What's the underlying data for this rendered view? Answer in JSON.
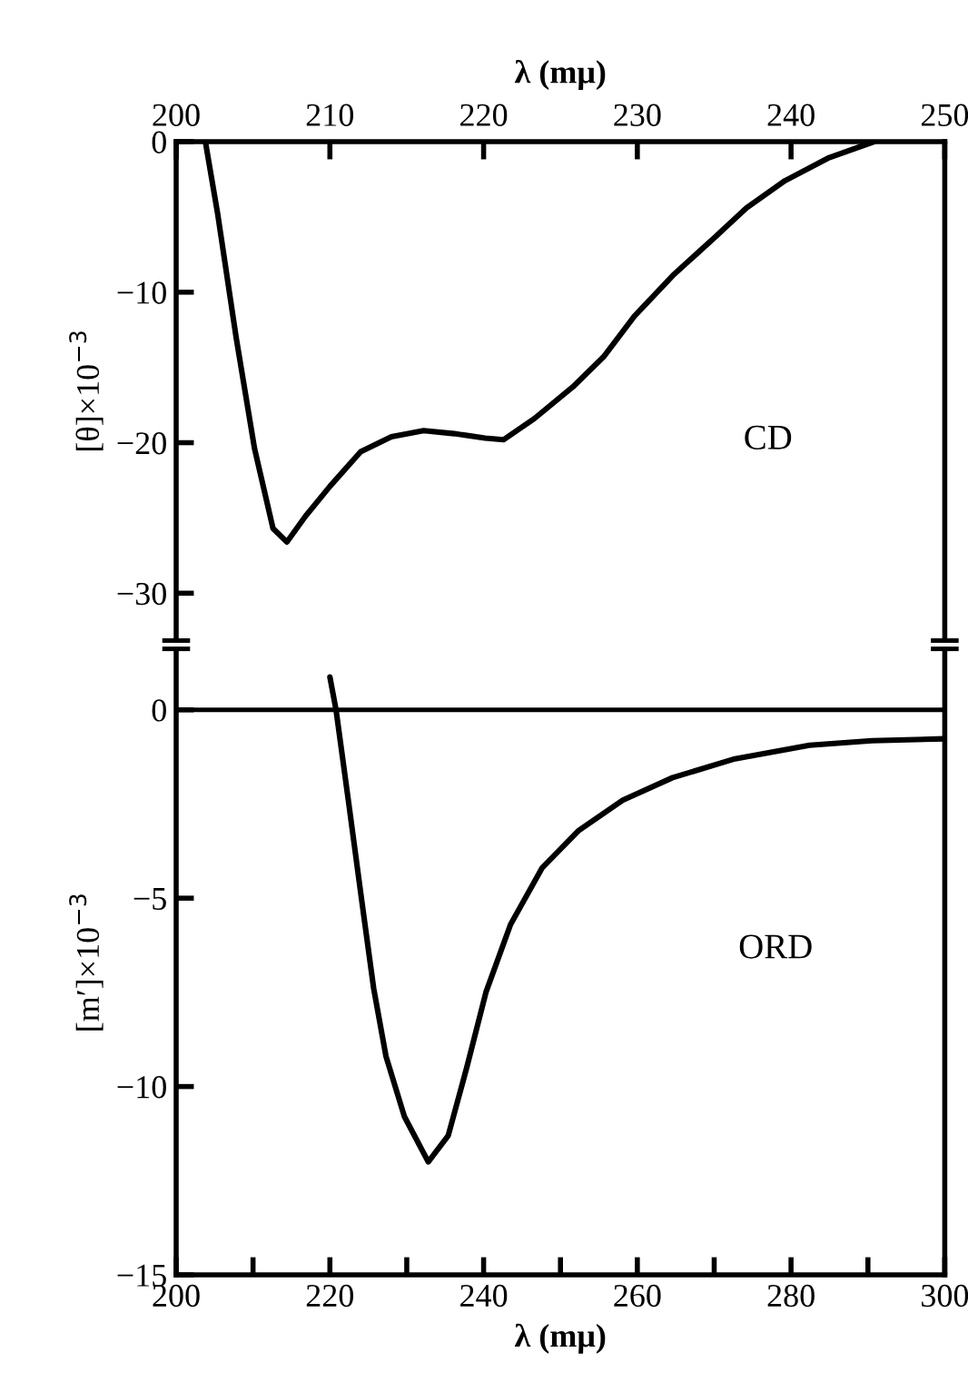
{
  "chart_data": [
    {
      "type": "line",
      "xlabel": "λ (mμ)",
      "ylabel": "[θ]×10$^{−3}$",
      "xlim": [
        200,
        250
      ],
      "xticks": [
        200,
        210,
        220,
        230,
        240,
        250
      ],
      "ylim": [
        -33.1,
        0
      ],
      "yticks": [
        0,
        {
          "value": -10,
          "label": "−10"
        },
        {
          "value": -20,
          "label": "−20"
        },
        {
          "value": -30,
          "label": "−30"
        }
      ],
      "grid": false,
      "legend": false,
      "marker": "none",
      "line_style": "solid",
      "series": [
        {
          "color": "#000000",
          "x": [
            201.9,
            202.7,
            203.9,
            205.1,
            206.3,
            207.2,
            208.4,
            210,
            212,
            214,
            216.1,
            218.1,
            220.1,
            221.3,
            223.3,
            225.8,
            227.8,
            229.8,
            232.3,
            235.1,
            237.1,
            239.6,
            242.4,
            245.4
          ],
          "values": [
            0,
            -4.8,
            -13,
            -20.4,
            -25.7,
            -26.6,
            -24.9,
            -22.9,
            -20.6,
            -19.6,
            -19.2,
            -19.4,
            -19.7,
            -19.8,
            -18.4,
            -16.3,
            -14.3,
            -11.6,
            -8.9,
            -6.3,
            -4.4,
            -2.6,
            -1.1,
            0
          ]
        }
      ],
      "annotations": [
        "CD"
      ]
    },
    {
      "type": "line",
      "xlabel": "λ (mμ)",
      "ylabel": "[m′]×10$^{−3}$",
      "xlim": [
        200,
        300
      ],
      "xticks": [
        200,
        {
          "value": 210,
          "label": null
        },
        220,
        {
          "value": 230,
          "label": null
        },
        240,
        {
          "value": 250,
          "label": null
        },
        260,
        {
          "value": 270,
          "label": null
        },
        280,
        {
          "value": 290,
          "label": null
        },
        300
      ],
      "ylim": [
        -15,
        1.6
      ],
      "yticks": [
        0,
        {
          "value": -5,
          "label": "−5"
        },
        {
          "value": -10,
          "label": "−10"
        },
        {
          "value": -15,
          "label": "−15"
        }
      ],
      "grid": false,
      "legend": false,
      "marker": "none",
      "line_style": "solid",
      "ref_lines": [
        {
          "axis": "y",
          "value": 0,
          "color": "#000000"
        }
      ],
      "series": [
        {
          "color": "#000000",
          "x": [
            220,
            220.8,
            222.4,
            224.1,
            225.7,
            227.3,
            229.7,
            232.8,
            235.4,
            237.8,
            240.3,
            243.5,
            247.6,
            252.4,
            258.1,
            264.6,
            272.7,
            282.4,
            290.5,
            300
          ],
          "values": [
            0.87,
            0,
            -2.4,
            -5.0,
            -7.4,
            -9.2,
            -10.8,
            -12.0,
            -11.3,
            -9.5,
            -7.5,
            -5.7,
            -4.2,
            -3.2,
            -2.4,
            -1.8,
            -1.3,
            -0.94,
            -0.82,
            -0.77
          ]
        }
      ],
      "annotations": [
        "ORD"
      ]
    }
  ]
}
